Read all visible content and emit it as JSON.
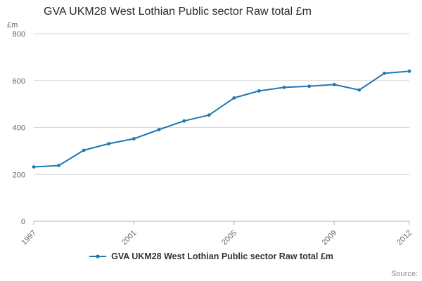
{
  "title": "GVA UKM28 West Lothian Public sector Raw total £m",
  "y_axis_unit": "£m",
  "legend": {
    "label": "GVA UKM28 West Lothian Public sector Raw total £m"
  },
  "source_label": "Source:",
  "chart_data": {
    "type": "line",
    "title": "GVA UKM28 West Lothian Public sector Raw total £m",
    "x": [
      1997,
      1998,
      1999,
      2000,
      2001,
      2002,
      2003,
      2004,
      2005,
      2006,
      2007,
      2008,
      2009,
      2010,
      2011,
      2012
    ],
    "values": [
      232,
      238,
      303,
      331,
      352,
      391,
      428,
      453,
      526,
      556,
      571,
      576,
      583,
      560,
      631,
      640
    ],
    "xlabel": "",
    "ylabel": "£m",
    "ylim": [
      0,
      800
    ],
    "yticks": [
      0,
      200,
      400,
      600,
      800
    ],
    "xticks": [
      1997,
      2001,
      2005,
      2009,
      2012
    ],
    "grid": "horizontal",
    "legend_position": "bottom",
    "line_color": "#1f77b4",
    "gridline_color": "#d9d9d9",
    "axis_color": "#b3b3b3"
  }
}
